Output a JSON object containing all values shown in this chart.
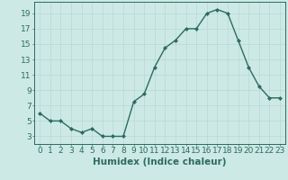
{
  "x": [
    0,
    1,
    2,
    3,
    4,
    5,
    6,
    7,
    8,
    9,
    10,
    11,
    12,
    13,
    14,
    15,
    16,
    17,
    18,
    19,
    20,
    21,
    22,
    23
  ],
  "y": [
    6,
    5,
    5,
    4,
    3.5,
    4,
    3,
    3,
    3,
    7.5,
    8.5,
    12,
    14.5,
    15.5,
    17,
    17,
    19,
    19.5,
    19,
    15.5,
    12,
    9.5,
    8,
    8
  ],
  "line_color": "#2e6b5e",
  "marker": "D",
  "marker_size": 2,
  "bg_color": "#cce9e5",
  "grid_color": "#b8d8d4",
  "xlabel": "Humidex (Indice chaleur)",
  "xlim": [
    -0.5,
    23.5
  ],
  "ylim": [
    2,
    20.5
  ],
  "yticks": [
    3,
    5,
    7,
    9,
    11,
    13,
    15,
    17,
    19
  ],
  "xticks": [
    0,
    1,
    2,
    3,
    4,
    5,
    6,
    7,
    8,
    9,
    10,
    11,
    12,
    13,
    14,
    15,
    16,
    17,
    18,
    19,
    20,
    21,
    22,
    23
  ],
  "xlabel_fontsize": 7.5,
  "tick_fontsize": 6.5,
  "line_width": 1.0
}
